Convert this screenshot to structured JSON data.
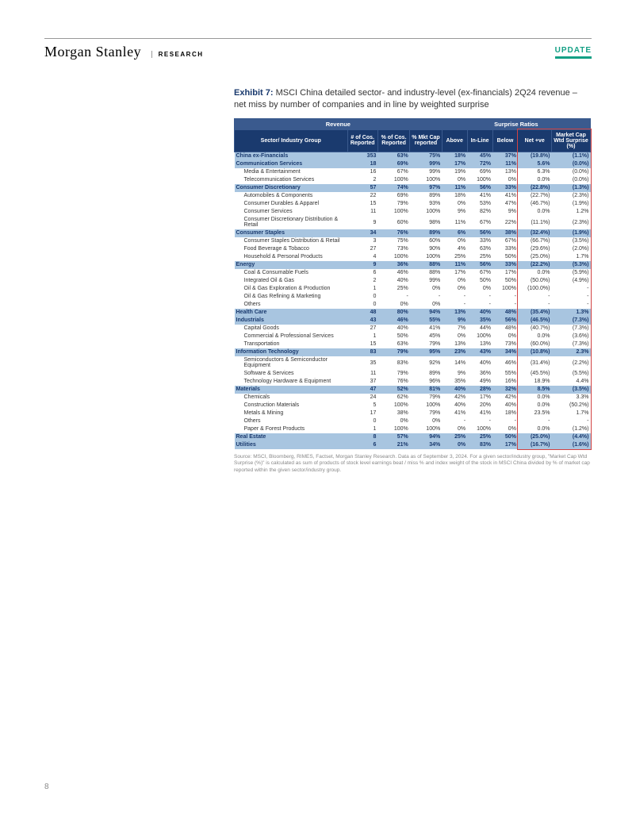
{
  "header": {
    "logo": "Morgan Stanley",
    "research": "RESEARCH",
    "update": "UPDATE"
  },
  "exhibit": {
    "num": "Exhibit 7:",
    "title": "MSCI China detailed sector- and industry-level (ex-financials) 2Q24 revenue – net miss by number of companies and in line by weighted surprise"
  },
  "columns": {
    "group1": "Revenue",
    "group2": "Surprise Ratios",
    "sector": "Sector/ Industry Group",
    "cos_rep": "# of Cos. Reported",
    "pct_cos": "% of Cos. Reported",
    "mkt_cap": "% Mkt Cap reported",
    "above": "Above",
    "inline": "In-Line",
    "below": "Below",
    "net": "Net +ve",
    "wtd": "Market Cap Wtd Surprise (%)"
  },
  "rows": [
    {
      "t": "s",
      "name": "China ex-Financials",
      "v": [
        "353",
        "63%",
        "75%",
        "18%",
        "45%",
        "37%",
        "(19.8%)",
        "(1.1%)"
      ],
      "neg": [
        6,
        7
      ]
    },
    {
      "t": "s",
      "name": "Communication Services",
      "v": [
        "18",
        "69%",
        "99%",
        "17%",
        "72%",
        "11%",
        "5.6%",
        "(0.0%)"
      ],
      "neg": [
        7
      ]
    },
    {
      "t": "d",
      "name": "Media & Entertainment",
      "v": [
        "16",
        "67%",
        "99%",
        "19%",
        "69%",
        "13%",
        "6.3%",
        "(0.0%)"
      ],
      "neg": [
        7
      ]
    },
    {
      "t": "d",
      "name": "Telecommunication Services",
      "v": [
        "2",
        "100%",
        "100%",
        "0%",
        "100%",
        "0%",
        "0.0%",
        "(0.0%)"
      ],
      "neg": [
        7
      ]
    },
    {
      "t": "s",
      "name": "Consumer Discretionary",
      "v": [
        "57",
        "74%",
        "97%",
        "11%",
        "56%",
        "33%",
        "(22.8%)",
        "(1.3%)"
      ],
      "neg": [
        6,
        7
      ]
    },
    {
      "t": "d",
      "name": "Automobiles & Components",
      "v": [
        "22",
        "69%",
        "89%",
        "18%",
        "41%",
        "41%",
        "(22.7%)",
        "(2.3%)"
      ],
      "neg": [
        6,
        7
      ]
    },
    {
      "t": "d",
      "name": "Consumer Durables & Apparel",
      "v": [
        "15",
        "79%",
        "93%",
        "0%",
        "53%",
        "47%",
        "(46.7%)",
        "(1.9%)"
      ],
      "neg": [
        6,
        7
      ]
    },
    {
      "t": "d",
      "name": "Consumer Services",
      "v": [
        "11",
        "100%",
        "100%",
        "9%",
        "82%",
        "9%",
        "0.0%",
        "1.2%"
      ],
      "neg": []
    },
    {
      "t": "d",
      "name": "Consumer Discretionary Distribution & Retail",
      "v": [
        "9",
        "60%",
        "98%",
        "11%",
        "67%",
        "22%",
        "(11.1%)",
        "(2.3%)"
      ],
      "neg": [
        6,
        7
      ]
    },
    {
      "t": "s",
      "name": "Consumer Staples",
      "v": [
        "34",
        "76%",
        "89%",
        "6%",
        "56%",
        "38%",
        "(32.4%)",
        "(1.9%)"
      ],
      "neg": [
        6,
        7
      ]
    },
    {
      "t": "d",
      "name": "Consumer Staples Distribution & Retail",
      "v": [
        "3",
        "75%",
        "60%",
        "0%",
        "33%",
        "67%",
        "(66.7%)",
        "(3.5%)"
      ],
      "neg": [
        6,
        7
      ]
    },
    {
      "t": "d",
      "name": "Food Beverage & Tobacco",
      "v": [
        "27",
        "73%",
        "90%",
        "4%",
        "63%",
        "33%",
        "(29.6%)",
        "(2.0%)"
      ],
      "neg": [
        6,
        7
      ]
    },
    {
      "t": "d",
      "name": "Household & Personal Products",
      "v": [
        "4",
        "100%",
        "100%",
        "25%",
        "25%",
        "50%",
        "(25.0%)",
        "1.7%"
      ],
      "neg": [
        6
      ]
    },
    {
      "t": "s",
      "name": "Energy",
      "v": [
        "9",
        "36%",
        "88%",
        "11%",
        "56%",
        "33%",
        "(22.2%)",
        "(5.3%)"
      ],
      "neg": [
        6,
        7
      ]
    },
    {
      "t": "d",
      "name": "Coal & Consumable Fuels",
      "v": [
        "6",
        "46%",
        "88%",
        "17%",
        "67%",
        "17%",
        "0.0%",
        "(5.9%)"
      ],
      "neg": [
        7
      ]
    },
    {
      "t": "d",
      "name": "Integrated Oil & Gas",
      "v": [
        "2",
        "40%",
        "99%",
        "0%",
        "50%",
        "50%",
        "(50.0%)",
        "(4.9%)"
      ],
      "neg": [
        6,
        7
      ]
    },
    {
      "t": "d",
      "name": "Oil & Gas Exploration & Production",
      "v": [
        "1",
        "25%",
        "0%",
        "0%",
        "0%",
        "100%",
        "(100.0%)",
        "-"
      ],
      "neg": [
        6
      ]
    },
    {
      "t": "d",
      "name": "Oil & Gas Refining & Marketing",
      "v": [
        "0",
        "-",
        "-",
        "-",
        "-",
        "-",
        "-",
        "-"
      ],
      "neg": []
    },
    {
      "t": "d",
      "name": "Others",
      "v": [
        "0",
        "0%",
        "0%",
        "-",
        "-",
        "-",
        "-",
        "-"
      ],
      "neg": []
    },
    {
      "t": "s",
      "name": "Health Care",
      "v": [
        "48",
        "80%",
        "94%",
        "13%",
        "40%",
        "48%",
        "(35.4%)",
        "1.3%"
      ],
      "neg": [
        6
      ]
    },
    {
      "t": "s",
      "name": "Industrials",
      "v": [
        "43",
        "46%",
        "55%",
        "9%",
        "35%",
        "56%",
        "(46.5%)",
        "(7.3%)"
      ],
      "neg": [
        6,
        7
      ]
    },
    {
      "t": "d",
      "name": "Capital Goods",
      "v": [
        "27",
        "40%",
        "41%",
        "7%",
        "44%",
        "48%",
        "(40.7%)",
        "(7.3%)"
      ],
      "neg": [
        6,
        7
      ]
    },
    {
      "t": "d",
      "name": "Commercial & Professional Services",
      "v": [
        "1",
        "50%",
        "45%",
        "0%",
        "100%",
        "0%",
        "0.0%",
        "(3.6%)"
      ],
      "neg": [
        7
      ]
    },
    {
      "t": "d",
      "name": "Transportation",
      "v": [
        "15",
        "63%",
        "79%",
        "13%",
        "13%",
        "73%",
        "(60.0%)",
        "(7.3%)"
      ],
      "neg": [
        6,
        7
      ]
    },
    {
      "t": "s",
      "name": "Information Technology",
      "v": [
        "83",
        "79%",
        "95%",
        "23%",
        "43%",
        "34%",
        "(10.8%)",
        "2.3%"
      ],
      "neg": [
        6
      ]
    },
    {
      "t": "d",
      "name": "Semiconductors & Semiconductor Equipment",
      "v": [
        "35",
        "83%",
        "92%",
        "14%",
        "40%",
        "46%",
        "(31.4%)",
        "(2.2%)"
      ],
      "neg": [
        6,
        7
      ]
    },
    {
      "t": "d",
      "name": "Software & Services",
      "v": [
        "11",
        "79%",
        "89%",
        "9%",
        "36%",
        "55%",
        "(45.5%)",
        "(5.5%)"
      ],
      "neg": [
        6,
        7
      ]
    },
    {
      "t": "d",
      "name": "Technology Hardware & Equipment",
      "v": [
        "37",
        "76%",
        "96%",
        "35%",
        "49%",
        "16%",
        "18.9%",
        "4.4%"
      ],
      "neg": []
    },
    {
      "t": "s",
      "name": "Materials",
      "v": [
        "47",
        "52%",
        "81%",
        "40%",
        "28%",
        "32%",
        "8.5%",
        "(3.5%)"
      ],
      "neg": [
        7
      ]
    },
    {
      "t": "d",
      "name": "Chemicals",
      "v": [
        "24",
        "62%",
        "79%",
        "42%",
        "17%",
        "42%",
        "0.0%",
        "3.3%"
      ],
      "neg": []
    },
    {
      "t": "d",
      "name": "Construction Materials",
      "v": [
        "5",
        "100%",
        "100%",
        "40%",
        "20%",
        "40%",
        "0.0%",
        "(50.2%)"
      ],
      "neg": [
        7
      ]
    },
    {
      "t": "d",
      "name": "Metals & Mining",
      "v": [
        "17",
        "38%",
        "79%",
        "41%",
        "41%",
        "18%",
        "23.5%",
        "1.7%"
      ],
      "neg": []
    },
    {
      "t": "d",
      "name": "Others",
      "v": [
        "0",
        "0%",
        "0%",
        "-",
        "-",
        "-",
        "-",
        "-"
      ],
      "neg": []
    },
    {
      "t": "d",
      "name": "Paper & Forest Products",
      "v": [
        "1",
        "100%",
        "100%",
        "0%",
        "100%",
        "0%",
        "0.0%",
        "(1.2%)"
      ],
      "neg": [
        7
      ]
    },
    {
      "t": "s",
      "name": "Real Estate",
      "v": [
        "8",
        "57%",
        "94%",
        "25%",
        "25%",
        "50%",
        "(25.0%)",
        "(4.4%)"
      ],
      "neg": [
        6,
        7
      ]
    },
    {
      "t": "s",
      "name": "Utilities",
      "v": [
        "6",
        "21%",
        "34%",
        "0%",
        "83%",
        "17%",
        "(16.7%)",
        "(1.6%)"
      ],
      "neg": [
        6,
        7
      ]
    }
  ],
  "source": "Source: MSCI, Bloomberg, RIMES, Factset, Morgan Stanley Research. Data as of September 3, 2024. For a given sector/industry group, \"Market Cap Wtd Surprise (%)\" is calculated as sum of products of stock level earnings beat / miss % and index weight of the stock in MSCI China divided by % of market cap reported within the given sector/industry group.",
  "page_num": "8",
  "colors": {
    "header_bg": "#1a3a6e",
    "subheader_bg": "#3a5a8e",
    "sector_bg": "#a8c5e0",
    "neg_color": "#d14343",
    "update_color": "#14a085"
  },
  "col_widths": [
    "134px",
    "36px",
    "38px",
    "38px",
    "30px",
    "30px",
    "30px",
    "40px",
    "46px"
  ]
}
